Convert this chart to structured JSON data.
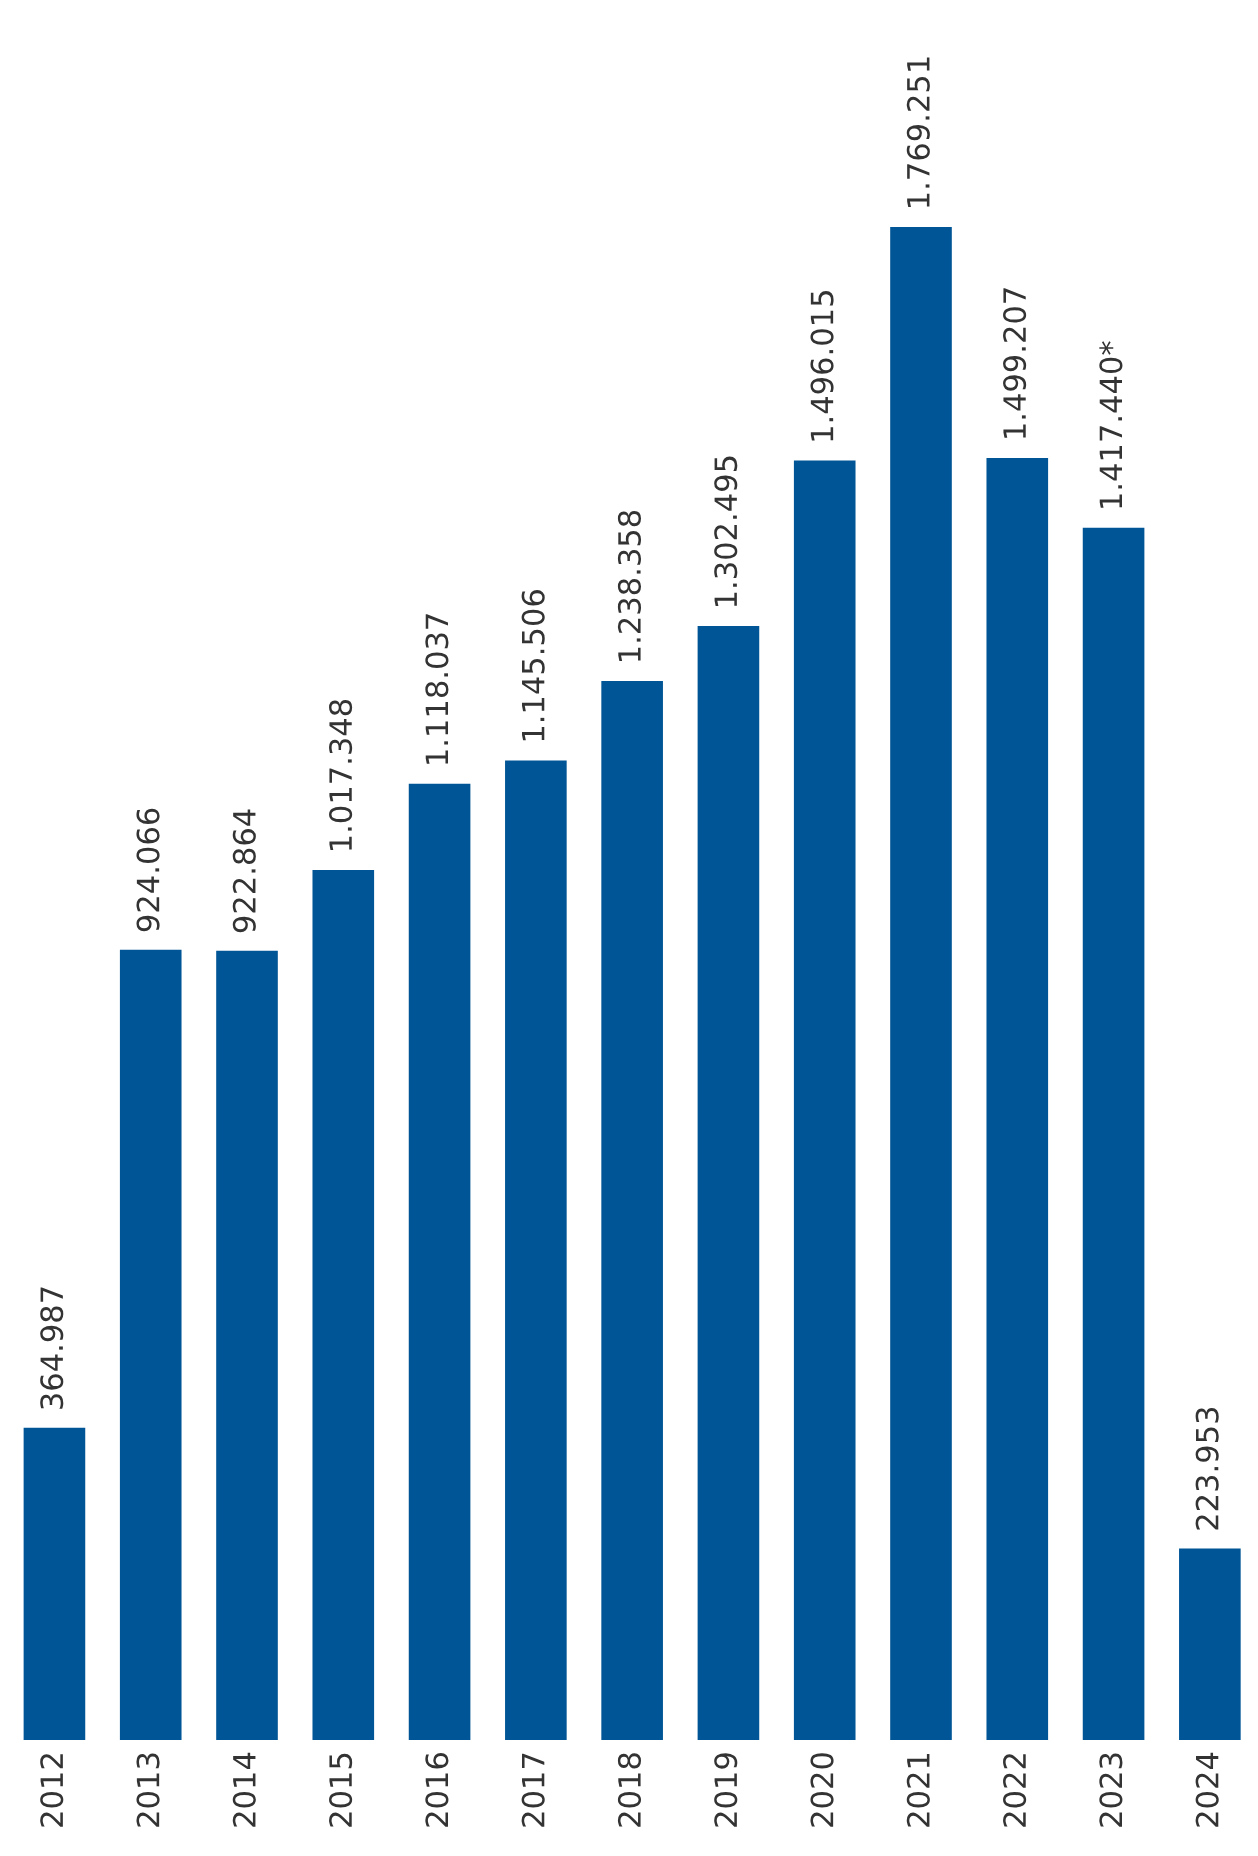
{
  "chart_data": {
    "type": "bar",
    "categories": [
      "2012",
      "2013",
      "2014",
      "2015",
      "2016",
      "2017",
      "2018",
      "2019",
      "2020",
      "2021",
      "2022",
      "2023",
      "2024"
    ],
    "values": [
      364987,
      924066,
      922864,
      1017348,
      1118037,
      1145506,
      1238358,
      1302495,
      1496015,
      1769251,
      1499207,
      1417440,
      223953
    ],
    "value_labels": [
      "364.987",
      "924.066",
      "922.864",
      "1.017.348",
      "1.118.037",
      "1.145.506",
      "1.238.358",
      "1.302.495",
      "1.496.015",
      "1.769.251",
      "1.499.207",
      "1.417.440*",
      "223.953"
    ],
    "color": "#005596",
    "grid": false,
    "legend": false
  }
}
